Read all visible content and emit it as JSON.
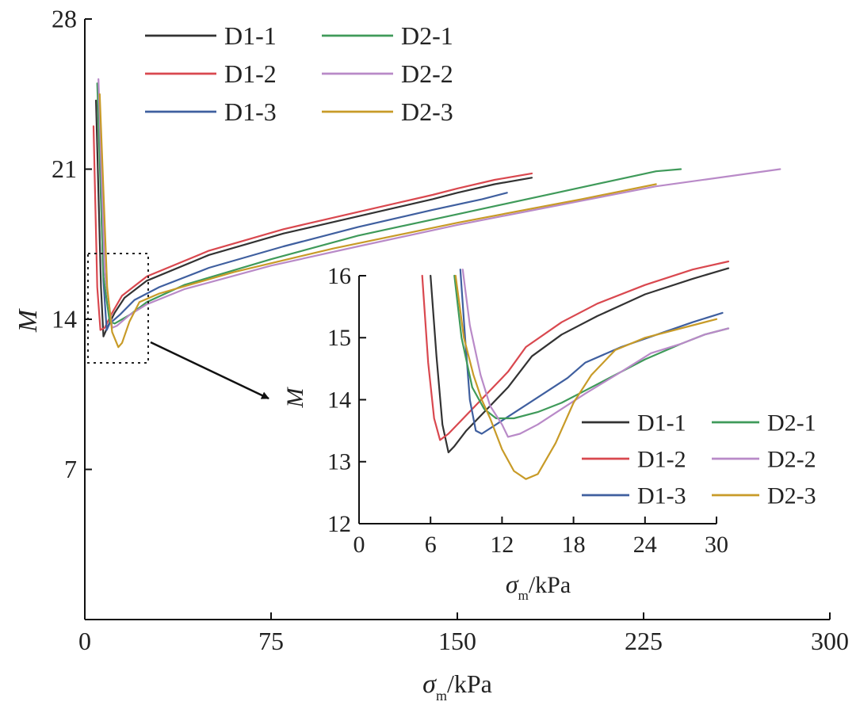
{
  "chart_data": [
    {
      "type": "line",
      "xlabel_symbol": "σ",
      "xlabel_sub": "m",
      "xlabel_unit": "/kPa",
      "ylabel": "M",
      "xlim": [
        0,
        300
      ],
      "ylim": [
        0,
        28
      ],
      "xticks": [
        "0",
        "75",
        "150",
        "225",
        "300"
      ],
      "yticks": [
        "7",
        "14",
        "21",
        "28"
      ],
      "legend_position": "top-left",
      "series": [
        {
          "name": "D1-1",
          "color": "#333333",
          "points": [
            [
              4.5,
              24.2
            ],
            [
              6.5,
              15.5
            ],
            [
              7.5,
              13.2
            ],
            [
              9,
              13.6
            ],
            [
              12,
              14.3
            ],
            [
              16,
              15.0
            ],
            [
              25,
              15.8
            ],
            [
              50,
              17.0
            ],
            [
              80,
              18.0
            ],
            [
              110,
              18.8
            ],
            [
              140,
              19.6
            ],
            [
              150,
              19.9
            ],
            [
              165,
              20.3
            ],
            [
              180,
              20.6
            ]
          ]
        },
        {
          "name": "D1-2",
          "color": "#d9484f",
          "points": [
            [
              3.5,
              23.0
            ],
            [
              5,
              15.5
            ],
            [
              6.3,
              13.5
            ],
            [
              8,
              13.6
            ],
            [
              11,
              14.3
            ],
            [
              15,
              15.1
            ],
            [
              25,
              16.0
            ],
            [
              50,
              17.2
            ],
            [
              80,
              18.2
            ],
            [
              110,
              19.0
            ],
            [
              140,
              19.8
            ],
            [
              150,
              20.1
            ],
            [
              165,
              20.5
            ],
            [
              180,
              20.8
            ]
          ]
        },
        {
          "name": "D1-3",
          "color": "#3f5f9f",
          "points": [
            [
              5.5,
              24.0
            ],
            [
              7.5,
              15.8
            ],
            [
              8.8,
              13.5
            ],
            [
              10,
              13.8
            ],
            [
              14,
              14.2
            ],
            [
              20,
              14.9
            ],
            [
              30,
              15.5
            ],
            [
              50,
              16.4
            ],
            [
              80,
              17.4
            ],
            [
              110,
              18.3
            ],
            [
              140,
              19.1
            ],
            [
              160,
              19.6
            ],
            [
              170,
              19.9
            ]
          ]
        },
        {
          "name": "D2-1",
          "color": "#3f9a5a",
          "points": [
            [
              5,
              25.0
            ],
            [
              7.5,
              16.0
            ],
            [
              10,
              13.9
            ],
            [
              12,
              13.8
            ],
            [
              18,
              14.2
            ],
            [
              25,
              14.8
            ],
            [
              40,
              15.6
            ],
            [
              75,
              16.8
            ],
            [
              110,
              17.9
            ],
            [
              150,
              18.9
            ],
            [
              190,
              19.9
            ],
            [
              230,
              20.9
            ],
            [
              240,
              21.0
            ]
          ]
        },
        {
          "name": "D2-2",
          "color": "#b98ac8",
          "points": [
            [
              5.5,
              25.2
            ],
            [
              8,
              16.2
            ],
            [
              11,
              13.6
            ],
            [
              13,
              13.7
            ],
            [
              18,
              14.2
            ],
            [
              25,
              14.7
            ],
            [
              40,
              15.4
            ],
            [
              75,
              16.5
            ],
            [
              110,
              17.4
            ],
            [
              150,
              18.4
            ],
            [
              190,
              19.3
            ],
            [
              230,
              20.2
            ],
            [
              280,
              21.0
            ]
          ]
        },
        {
          "name": "D2-3",
          "color": "#c89b28",
          "points": [
            [
              6,
              24.5
            ],
            [
              9,
              15.5
            ],
            [
              11,
              13.4
            ],
            [
              13.5,
              12.7
            ],
            [
              15,
              12.9
            ],
            [
              18,
              13.9
            ],
            [
              22,
              14.8
            ],
            [
              30,
              15.2
            ],
            [
              60,
              16.2
            ],
            [
              100,
              17.3
            ],
            [
              150,
              18.5
            ],
            [
              200,
              19.6
            ],
            [
              230,
              20.3
            ]
          ]
        }
      ]
    },
    {
      "type": "line",
      "xlabel_symbol": "σ",
      "xlabel_sub": "m",
      "xlabel_unit": "/kPa",
      "ylabel": "M",
      "xlim": [
        0,
        30
      ],
      "ylim": [
        12,
        16
      ],
      "xticks": [
        "0",
        "6",
        "12",
        "18",
        "24",
        "30"
      ],
      "yticks": [
        "12",
        "13",
        "14",
        "15",
        "16"
      ],
      "legend_position": "bottom-right",
      "series": [
        {
          "name": "D1-1",
          "color": "#333333",
          "points": [
            [
              6.0,
              16.0
            ],
            [
              6.5,
              14.7
            ],
            [
              7.0,
              13.6
            ],
            [
              7.5,
              13.15
            ],
            [
              8.0,
              13.25
            ],
            [
              9.0,
              13.5
            ],
            [
              10.5,
              13.8
            ],
            [
              12.5,
              14.2
            ],
            [
              14.5,
              14.7
            ],
            [
              17.0,
              15.05
            ],
            [
              20.0,
              15.35
            ],
            [
              24.0,
              15.7
            ],
            [
              28.0,
              15.95
            ],
            [
              31.0,
              16.12
            ]
          ]
        },
        {
          "name": "D1-2",
          "color": "#d9484f",
          "points": [
            [
              5.3,
              16.0
            ],
            [
              5.8,
              14.6
            ],
            [
              6.3,
              13.7
            ],
            [
              6.8,
              13.35
            ],
            [
              7.5,
              13.45
            ],
            [
              9.0,
              13.75
            ],
            [
              11.0,
              14.15
            ],
            [
              12.5,
              14.45
            ],
            [
              14.0,
              14.85
            ],
            [
              17.0,
              15.25
            ],
            [
              20.0,
              15.55
            ],
            [
              24.0,
              15.85
            ],
            [
              28.0,
              16.1
            ],
            [
              31.0,
              16.23
            ]
          ]
        },
        {
          "name": "D1-3",
          "color": "#3f5f9f",
          "points": [
            [
              8.5,
              16.1
            ],
            [
              8.9,
              15.0
            ],
            [
              9.3,
              14.0
            ],
            [
              9.8,
              13.5
            ],
            [
              10.3,
              13.45
            ],
            [
              11.5,
              13.6
            ],
            [
              13.5,
              13.85
            ],
            [
              15.5,
              14.1
            ],
            [
              17.5,
              14.35
            ],
            [
              19.0,
              14.6
            ],
            [
              22.0,
              14.85
            ],
            [
              25.0,
              15.05
            ],
            [
              28.0,
              15.25
            ],
            [
              30.5,
              15.4
            ]
          ]
        },
        {
          "name": "D2-1",
          "color": "#3f9a5a",
          "points": [
            [
              8.0,
              16.0
            ],
            [
              8.6,
              15.0
            ],
            [
              9.5,
              14.2
            ],
            [
              10.5,
              13.85
            ],
            [
              11.5,
              13.7
            ],
            [
              13.0,
              13.7
            ],
            [
              15.0,
              13.8
            ],
            [
              17.0,
              13.95
            ],
            [
              19.0,
              14.15
            ],
            [
              21.0,
              14.35
            ],
            [
              24.0,
              14.65
            ],
            [
              27.0,
              14.9
            ],
            [
              29.0,
              15.05
            ],
            [
              31.0,
              15.15
            ]
          ]
        },
        {
          "name": "D2-2",
          "color": "#b98ac8",
          "points": [
            [
              8.7,
              16.1
            ],
            [
              9.3,
              15.2
            ],
            [
              10.2,
              14.4
            ],
            [
              11.0,
              13.9
            ],
            [
              12.0,
              13.6
            ],
            [
              12.5,
              13.4
            ],
            [
              13.5,
              13.45
            ],
            [
              15.0,
              13.6
            ],
            [
              17.0,
              13.85
            ],
            [
              19.0,
              14.1
            ],
            [
              22.0,
              14.45
            ],
            [
              24.5,
              14.75
            ],
            [
              27.0,
              14.9
            ],
            [
              29.0,
              15.05
            ],
            [
              31.0,
              15.15
            ]
          ]
        },
        {
          "name": "D2-3",
          "color": "#c89b28",
          "points": [
            [
              8.1,
              16.0
            ],
            [
              8.8,
              15.0
            ],
            [
              9.6,
              14.4
            ],
            [
              10.3,
              14.0
            ],
            [
              11.0,
              13.7
            ],
            [
              12.0,
              13.2
            ],
            [
              13.0,
              12.85
            ],
            [
              14.0,
              12.72
            ],
            [
              15.0,
              12.8
            ],
            [
              16.5,
              13.3
            ],
            [
              18.0,
              13.95
            ],
            [
              19.5,
              14.4
            ],
            [
              21.5,
              14.8
            ],
            [
              24.0,
              15.0
            ],
            [
              27.0,
              15.15
            ],
            [
              30.0,
              15.3
            ]
          ]
        }
      ]
    }
  ]
}
